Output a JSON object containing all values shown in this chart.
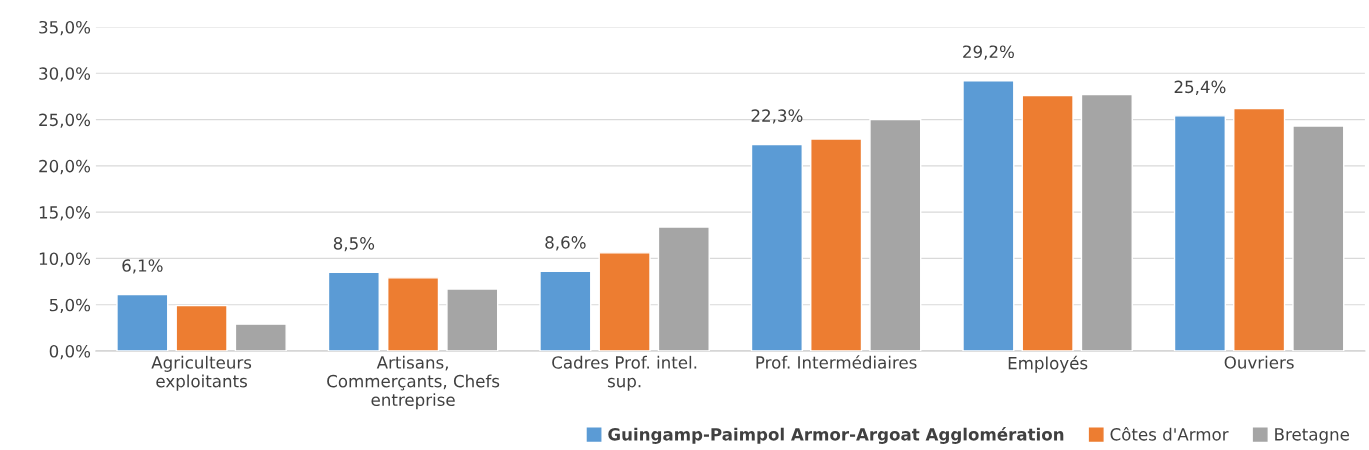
{
  "chart_data": {
    "type": "bar",
    "categories": [
      "Agriculteurs\nexploitants",
      "Artisans,\nCommerçants, Chefs\nentreprise",
      "Cadres Prof. intel.\nsup.",
      "Prof. Intermédiaires",
      "Employés",
      "Ouvriers"
    ],
    "series": [
      {
        "name": "Guingamp-Paimpol Armor-Argoat Agglomération",
        "color": "#5b9bd5",
        "values": [
          6.1,
          8.5,
          8.6,
          22.3,
          29.2,
          25.4
        ],
        "value_labels": [
          "6,1%",
          "8,5%",
          "8,6%",
          "22,3%",
          "29,2%",
          "25,4%"
        ]
      },
      {
        "name": "Côtes d'Armor",
        "color": "#ed7d31",
        "values": [
          4.9,
          7.9,
          10.6,
          22.9,
          27.6,
          26.2
        ]
      },
      {
        "name": "Bretagne",
        "color": "#a5a5a5",
        "values": [
          2.9,
          6.7,
          13.4,
          25.0,
          27.7,
          24.3
        ]
      }
    ],
    "ylim": [
      0,
      35
    ],
    "yticks": [
      {
        "value": 0,
        "label": "0,0%"
      },
      {
        "value": 5,
        "label": "5,0%"
      },
      {
        "value": 10,
        "label": "10,0%"
      },
      {
        "value": 15,
        "label": "15,0%"
      },
      {
        "value": 20,
        "label": "20,0%"
      },
      {
        "value": 25,
        "label": "25,0%"
      },
      {
        "value": 30,
        "label": "30,0%"
      },
      {
        "value": 35,
        "label": "35,0%"
      }
    ],
    "grid": "y",
    "legend": "bottom right"
  }
}
